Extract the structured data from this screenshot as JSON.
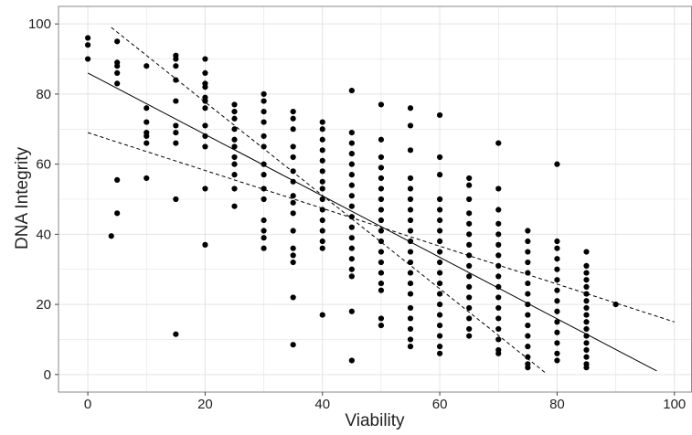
{
  "chart_data": {
    "type": "scatter",
    "title": "",
    "xlabel": "Viability",
    "ylabel": "DNA Integrity",
    "xlim": [
      -5,
      103
    ],
    "ylim": [
      -5,
      105
    ],
    "x_ticks": [
      0,
      20,
      40,
      60,
      80,
      100
    ],
    "y_ticks": [
      0,
      20,
      40,
      60,
      80,
      100
    ],
    "grid": true,
    "legend": "none",
    "colors": {
      "points": "#000000",
      "grid": "#e3e3e3",
      "frame": "#8a8a8a",
      "lines": "#000000"
    },
    "fit_line": {
      "x": [
        0,
        97
      ],
      "y": [
        86,
        1
      ]
    },
    "prediction_bands": [
      {
        "x": [
          4,
          78
        ],
        "y": [
          99,
          0.5
        ]
      },
      {
        "x": [
          0,
          100
        ],
        "y": [
          69,
          15
        ]
      }
    ],
    "point_columns": [
      {
        "x": 0,
        "y": [
          96,
          94,
          90
        ]
      },
      {
        "x": 4,
        "y": [
          39.5
        ]
      },
      {
        "x": 5,
        "y": [
          95,
          89,
          88,
          86,
          83,
          55.5,
          46
        ]
      },
      {
        "x": 10,
        "y": [
          88,
          76,
          72,
          69,
          68,
          66,
          56
        ]
      },
      {
        "x": 15,
        "y": [
          91,
          90,
          88,
          84,
          78,
          71,
          69,
          66,
          50,
          11.5
        ]
      },
      {
        "x": 20,
        "y": [
          90,
          86,
          83,
          82,
          79,
          78,
          76,
          71,
          68,
          65,
          53,
          37
        ]
      },
      {
        "x": 25,
        "y": [
          77,
          75,
          73,
          70,
          67,
          65,
          62,
          60,
          57,
          53,
          48
        ]
      },
      {
        "x": 30,
        "y": [
          80,
          78,
          75,
          72,
          68,
          65,
          60,
          57,
          53,
          50,
          44,
          41,
          39,
          36
        ]
      },
      {
        "x": 35,
        "y": [
          75,
          73,
          70,
          65,
          62,
          58,
          55,
          51,
          49,
          46,
          41,
          36,
          34,
          32,
          22,
          8.5
        ]
      },
      {
        "x": 40,
        "y": [
          72,
          70,
          67,
          64,
          61,
          58,
          55,
          53,
          50,
          47,
          44,
          41,
          38,
          36,
          17
        ]
      },
      {
        "x": 45,
        "y": [
          81,
          69,
          66,
          63,
          60,
          57,
          54,
          51,
          48,
          45,
          42,
          39,
          36,
          33,
          30,
          28,
          18,
          4
        ]
      },
      {
        "x": 50,
        "y": [
          77,
          67,
          62,
          59,
          56,
          53,
          50,
          47,
          44,
          41,
          38,
          35,
          32,
          29,
          26,
          24,
          16,
          14
        ]
      },
      {
        "x": 55,
        "y": [
          76,
          71,
          64,
          56,
          53,
          50,
          47,
          44,
          41,
          38,
          35,
          32,
          29,
          26,
          23,
          19,
          16,
          13,
          10,
          8
        ]
      },
      {
        "x": 60,
        "y": [
          74,
          62,
          57,
          50,
          47,
          44,
          41,
          38,
          35,
          32,
          29,
          26,
          23,
          20,
          17,
          14,
          11,
          8,
          6
        ]
      },
      {
        "x": 65,
        "y": [
          56,
          54,
          50,
          46,
          43,
          40,
          37,
          34,
          31,
          28,
          25,
          22,
          19,
          16,
          13,
          11
        ]
      },
      {
        "x": 70,
        "y": [
          66,
          53,
          47,
          43,
          40,
          37,
          34,
          31,
          28,
          25,
          22,
          19,
          16,
          13,
          10,
          7,
          6
        ]
      },
      {
        "x": 75,
        "y": [
          41,
          38,
          35,
          32,
          29,
          26,
          23,
          20,
          17,
          14,
          11,
          8,
          5,
          3,
          2
        ]
      },
      {
        "x": 80,
        "y": [
          60,
          38,
          36,
          33,
          30,
          27,
          24,
          21,
          18,
          15,
          12,
          9,
          6,
          4
        ]
      },
      {
        "x": 85,
        "y": [
          35,
          31,
          29,
          27,
          25,
          23,
          21,
          19,
          17,
          15,
          13,
          11,
          9,
          7,
          5,
          3,
          2
        ]
      },
      {
        "x": 90,
        "y": [
          20
        ]
      }
    ]
  }
}
